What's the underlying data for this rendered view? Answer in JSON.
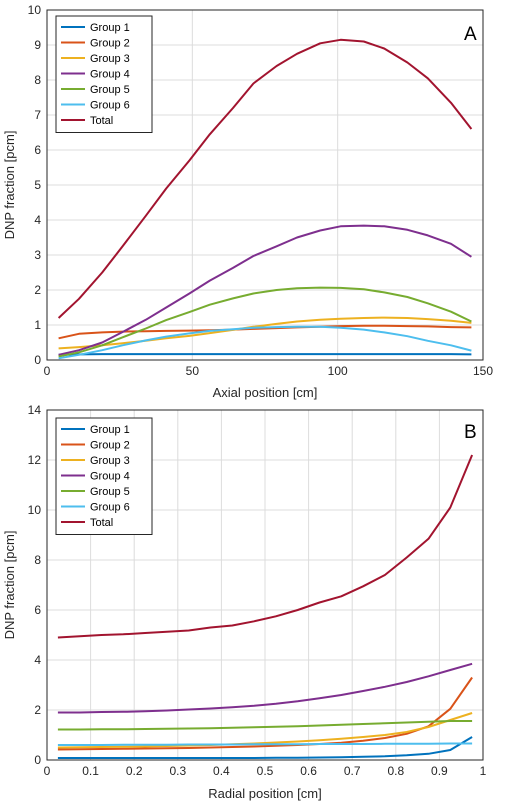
{
  "chart_data": [
    {
      "type": "line",
      "panel_label": "A",
      "xlabel": "Axial position [cm]",
      "ylabel": "DNP fraction [pcm]",
      "xlim": [
        0,
        150
      ],
      "ylim": [
        0,
        10
      ],
      "xticks": [
        0,
        50,
        100,
        150
      ],
      "yticks": [
        0,
        1,
        2,
        3,
        4,
        5,
        6,
        7,
        8,
        9,
        10
      ],
      "grid": true,
      "legend_position": "top-left",
      "x": [
        4,
        11,
        19,
        26,
        34,
        41,
        49,
        56,
        64,
        71,
        79,
        86,
        94,
        101,
        109,
        116,
        124,
        131,
        139,
        146
      ],
      "series": [
        {
          "name": "Group 1",
          "color": "#0072BD",
          "values": [
            0.15,
            0.16,
            0.17,
            0.17,
            0.17,
            0.17,
            0.17,
            0.17,
            0.17,
            0.17,
            0.17,
            0.17,
            0.17,
            0.17,
            0.17,
            0.17,
            0.17,
            0.17,
            0.17,
            0.16
          ]
        },
        {
          "name": "Group 2",
          "color": "#D95319",
          "values": [
            0.62,
            0.75,
            0.79,
            0.81,
            0.82,
            0.83,
            0.84,
            0.85,
            0.87,
            0.89,
            0.91,
            0.93,
            0.95,
            0.97,
            0.98,
            0.98,
            0.97,
            0.96,
            0.94,
            0.93
          ]
        },
        {
          "name": "Group 3",
          "color": "#EDB120",
          "values": [
            0.33,
            0.37,
            0.42,
            0.48,
            0.55,
            0.62,
            0.69,
            0.77,
            0.86,
            0.95,
            1.03,
            1.1,
            1.15,
            1.18,
            1.2,
            1.21,
            1.2,
            1.17,
            1.12,
            1.06
          ]
        },
        {
          "name": "Group 4",
          "color": "#7E2F8E",
          "values": [
            0.15,
            0.28,
            0.5,
            0.8,
            1.15,
            1.5,
            1.9,
            2.27,
            2.63,
            2.97,
            3.25,
            3.5,
            3.7,
            3.82,
            3.84,
            3.82,
            3.72,
            3.56,
            3.32,
            2.95
          ]
        },
        {
          "name": "Group 5",
          "color": "#77AC30",
          "values": [
            0.1,
            0.22,
            0.42,
            0.65,
            0.9,
            1.14,
            1.37,
            1.58,
            1.76,
            1.9,
            2.0,
            2.05,
            2.07,
            2.06,
            2.02,
            1.93,
            1.8,
            1.62,
            1.38,
            1.1
          ]
        },
        {
          "name": "Group 6",
          "color": "#4DBEEE",
          "values": [
            0.05,
            0.15,
            0.28,
            0.42,
            0.56,
            0.67,
            0.76,
            0.83,
            0.88,
            0.92,
            0.94,
            0.95,
            0.95,
            0.92,
            0.87,
            0.79,
            0.68,
            0.55,
            0.42,
            0.27
          ]
        },
        {
          "name": "Total",
          "color": "#A2142F",
          "values": [
            1.2,
            1.75,
            2.5,
            3.25,
            4.12,
            4.9,
            5.7,
            6.45,
            7.2,
            7.9,
            8.4,
            8.75,
            9.05,
            9.15,
            9.1,
            8.9,
            8.5,
            8.05,
            7.35,
            6.6
          ]
        }
      ]
    },
    {
      "type": "line",
      "panel_label": "B",
      "xlabel": "Radial position [cm]",
      "ylabel": "DNP fraction [pcm]",
      "xlim": [
        0,
        1
      ],
      "ylim": [
        0,
        14
      ],
      "xticks": [
        0,
        0.1,
        0.2,
        0.3,
        0.4,
        0.5,
        0.6,
        0.7,
        0.8,
        0.9,
        1
      ],
      "yticks": [
        0,
        2,
        4,
        6,
        8,
        10,
        12,
        14
      ],
      "grid": true,
      "legend_position": "top-left",
      "x": [
        0.025,
        0.075,
        0.125,
        0.175,
        0.225,
        0.275,
        0.325,
        0.375,
        0.425,
        0.475,
        0.525,
        0.575,
        0.625,
        0.675,
        0.725,
        0.775,
        0.825,
        0.875,
        0.925,
        0.975
      ],
      "series": [
        {
          "name": "Group 1",
          "color": "#0072BD",
          "values": [
            0.08,
            0.08,
            0.08,
            0.08,
            0.08,
            0.08,
            0.08,
            0.08,
            0.08,
            0.08,
            0.09,
            0.09,
            0.1,
            0.11,
            0.13,
            0.15,
            0.19,
            0.25,
            0.4,
            0.92
          ]
        },
        {
          "name": "Group 2",
          "color": "#D95319",
          "values": [
            0.42,
            0.43,
            0.44,
            0.45,
            0.46,
            0.47,
            0.48,
            0.5,
            0.52,
            0.54,
            0.57,
            0.6,
            0.64,
            0.69,
            0.77,
            0.88,
            1.05,
            1.35,
            2.05,
            3.3
          ]
        },
        {
          "name": "Group 3",
          "color": "#EDB120",
          "values": [
            0.5,
            0.51,
            0.52,
            0.53,
            0.54,
            0.56,
            0.58,
            0.6,
            0.63,
            0.66,
            0.7,
            0.74,
            0.79,
            0.85,
            0.92,
            1.0,
            1.12,
            1.32,
            1.6,
            1.88
          ]
        },
        {
          "name": "Group 4",
          "color": "#7E2F8E",
          "values": [
            1.9,
            1.9,
            1.92,
            1.93,
            1.95,
            1.98,
            2.02,
            2.06,
            2.11,
            2.17,
            2.25,
            2.35,
            2.47,
            2.6,
            2.76,
            2.93,
            3.12,
            3.35,
            3.6,
            3.85
          ]
        },
        {
          "name": "Group 5",
          "color": "#77AC30",
          "values": [
            1.22,
            1.22,
            1.23,
            1.23,
            1.24,
            1.25,
            1.26,
            1.27,
            1.29,
            1.31,
            1.33,
            1.35,
            1.38,
            1.41,
            1.44,
            1.47,
            1.5,
            1.53,
            1.56,
            1.56
          ]
        },
        {
          "name": "Group 6",
          "color": "#4DBEEE",
          "values": [
            0.6,
            0.6,
            0.6,
            0.61,
            0.61,
            0.61,
            0.62,
            0.62,
            0.62,
            0.63,
            0.63,
            0.63,
            0.64,
            0.64,
            0.64,
            0.65,
            0.65,
            0.65,
            0.66,
            0.66
          ]
        },
        {
          "name": "Total",
          "color": "#A2142F",
          "values": [
            4.9,
            4.95,
            5.0,
            5.03,
            5.08,
            5.13,
            5.18,
            5.3,
            5.38,
            5.55,
            5.75,
            6.0,
            6.3,
            6.55,
            6.95,
            7.4,
            8.1,
            8.85,
            10.1,
            12.2
          ]
        }
      ]
    }
  ]
}
